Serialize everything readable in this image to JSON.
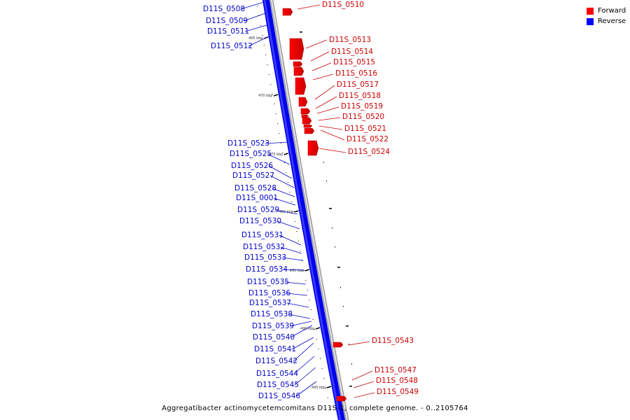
{
  "legend": {
    "forward_label": "Forward",
    "reverse_label": "Reverse",
    "forward_color": "#ff0000",
    "reverse_color": "#0000ff"
  },
  "caption": "Aggregatibacter actinomycetemcomitans D11S-1, complete genome. - 0..2105764",
  "scale_ticks": [
    {
      "label": "465 kbp"
    },
    {
      "label": "470 kbp"
    },
    {
      "label": "475 kbp"
    },
    {
      "label": "480 kbp"
    },
    {
      "label": "485 kbp"
    },
    {
      "label": "490 kbp"
    },
    {
      "label": "495 kbp"
    }
  ],
  "forward_genes": [
    {
      "name": "D11S_0510"
    },
    {
      "name": "D11S_0513"
    },
    {
      "name": "D11S_0514"
    },
    {
      "name": "D11S_0515"
    },
    {
      "name": "D11S_0516"
    },
    {
      "name": "D11S_0517"
    },
    {
      "name": "D11S_0518"
    },
    {
      "name": "D11S_0519"
    },
    {
      "name": "D11S_0520"
    },
    {
      "name": "D11S_0521"
    },
    {
      "name": "D11S_0522"
    },
    {
      "name": "D11S_0524"
    },
    {
      "name": "D11S_0543"
    },
    {
      "name": "D11S_0547"
    },
    {
      "name": "D11S_0548"
    },
    {
      "name": "D11S_0549"
    }
  ],
  "reverse_genes": [
    {
      "name": "D11S_0508"
    },
    {
      "name": "D11S_0509"
    },
    {
      "name": "D11S_0511"
    },
    {
      "name": "D11S_0512"
    },
    {
      "name": "D11S_0523"
    },
    {
      "name": "D11S_0525"
    },
    {
      "name": "D11S_0526"
    },
    {
      "name": "D11S_0527"
    },
    {
      "name": "D11S_0528"
    },
    {
      "name": "D11S_0001"
    },
    {
      "name": "D11S_0529"
    },
    {
      "name": "D11S_0530"
    },
    {
      "name": "D11S_0531"
    },
    {
      "name": "D11S_0532"
    },
    {
      "name": "D11S_0533"
    },
    {
      "name": "D11S_0534"
    },
    {
      "name": "D11S_0535"
    },
    {
      "name": "D11S_0536"
    },
    {
      "name": "D11S_0537"
    },
    {
      "name": "D11S_0538"
    },
    {
      "name": "D11S_0539"
    },
    {
      "name": "D11S_0540"
    },
    {
      "name": "D11S_0541"
    },
    {
      "name": "D11S_0542"
    },
    {
      "name": "D11S_0544"
    },
    {
      "name": "D11S_0545"
    },
    {
      "name": "D11S_0546"
    }
  ]
}
